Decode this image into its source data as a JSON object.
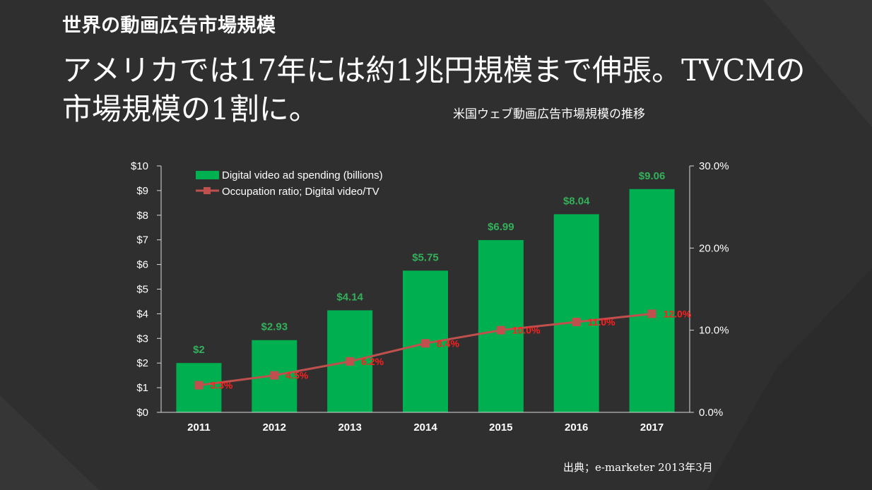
{
  "slide": {
    "section_title": "世界の動画広告市場規模",
    "headline": "アメリカでは17年には約1兆円規模まで伸張。TVCMの市場規模の1割に。",
    "chart_title": "米国ウェブ動画広告市場規模の推移",
    "source": "出典；e-marketer 2013年3月"
  },
  "colors": {
    "background": "#2f2f2f",
    "bar": "#00b050",
    "bar_label": "#33b15a",
    "line": "#c0504d",
    "line_label": "#ff1f1f",
    "axis": "#d9d9d9",
    "text": "#ffffff"
  },
  "chart_data": {
    "type": "bar",
    "categories": [
      "2011",
      "2012",
      "2013",
      "2014",
      "2015",
      "2016",
      "2017"
    ],
    "series": [
      {
        "name": "Digital video ad spending (billions)",
        "kind": "bar",
        "axis": "left",
        "values": [
          2,
          2.93,
          4.14,
          5.75,
          6.99,
          8.04,
          9.06
        ],
        "labels": [
          "$2",
          "$2.93",
          "$4.14",
          "$5.75",
          "$6.99",
          "$8.04",
          "$9.06"
        ]
      },
      {
        "name": "Occupation ratio; Digital video/TV",
        "kind": "line",
        "axis": "right",
        "values": [
          3.3,
          4.5,
          6.2,
          8.4,
          10.0,
          11.0,
          12.0
        ],
        "labels": [
          "3.3%",
          "4.5%",
          "6.2%",
          "8.4%",
          "10.0%",
          "11.0%",
          "12.0%"
        ]
      }
    ],
    "y_left": {
      "ylim": [
        0,
        10
      ],
      "ticks": [
        0,
        1,
        2,
        3,
        4,
        5,
        6,
        7,
        8,
        9,
        10
      ],
      "tick_labels": [
        "$0",
        "$1",
        "$2",
        "$3",
        "$4",
        "$5",
        "$6",
        "$7",
        "$8",
        "$9",
        "$10"
      ]
    },
    "y_right": {
      "ylim": [
        0,
        30
      ],
      "ticks": [
        0,
        10,
        20,
        30
      ],
      "tick_labels": [
        "0.0%",
        "10.0%",
        "20.0%",
        "30.0%"
      ]
    },
    "legend_position": "top-left",
    "grid": false
  }
}
